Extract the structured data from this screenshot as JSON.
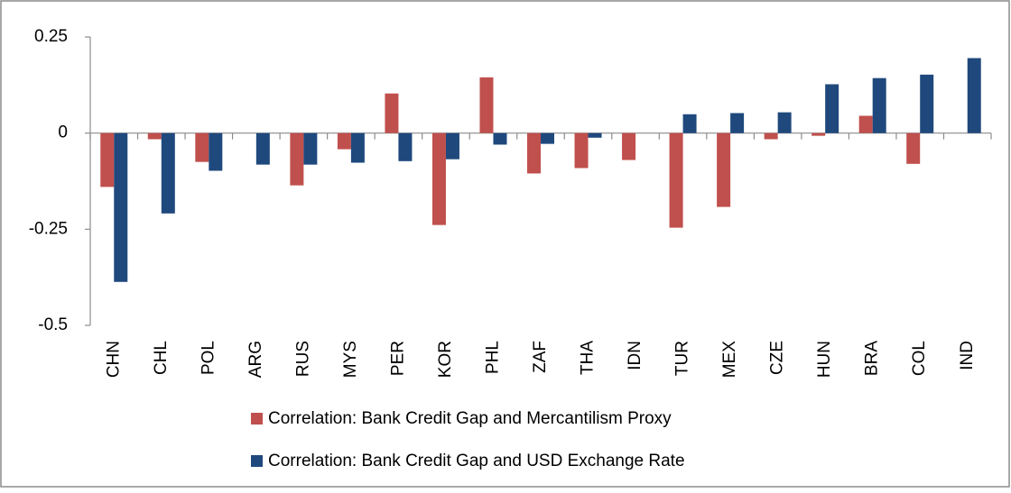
{
  "chart_data": {
    "type": "bar",
    "categories": [
      "CHN",
      "CHL",
      "POL",
      "ARG",
      "RUS",
      "MYS",
      "PER",
      "KOR",
      "PHL",
      "ZAF",
      "THA",
      "IDN",
      "TUR",
      "MEX",
      "CZE",
      "HUN",
      "BRA",
      "COL",
      "IND"
    ],
    "series": [
      {
        "name": "Correlation: Bank Credit Gap and Mercantilism Proxy",
        "color": "#c0504d",
        "values": [
          -0.14,
          -0.016,
          -0.075,
          null,
          -0.136,
          -0.042,
          0.103,
          -0.239,
          0.145,
          -0.105,
          -0.091,
          -0.07,
          -0.246,
          -0.192,
          -0.016,
          -0.007,
          0.045,
          -0.08,
          null
        ]
      },
      {
        "name": "Correlation: Bank Credit Gap and USD Exchange Rate",
        "color": "#1f497d",
        "values": [
          -0.387,
          -0.209,
          -0.098,
          -0.082,
          -0.082,
          -0.077,
          -0.073,
          -0.068,
          -0.03,
          -0.028,
          -0.012,
          null,
          0.049,
          0.052,
          0.054,
          0.127,
          0.143,
          0.152,
          0.195
        ]
      }
    ],
    "ylim": [
      -0.5,
      0.25
    ],
    "yticks": [
      0.25,
      0,
      -0.25,
      -0.5
    ]
  }
}
